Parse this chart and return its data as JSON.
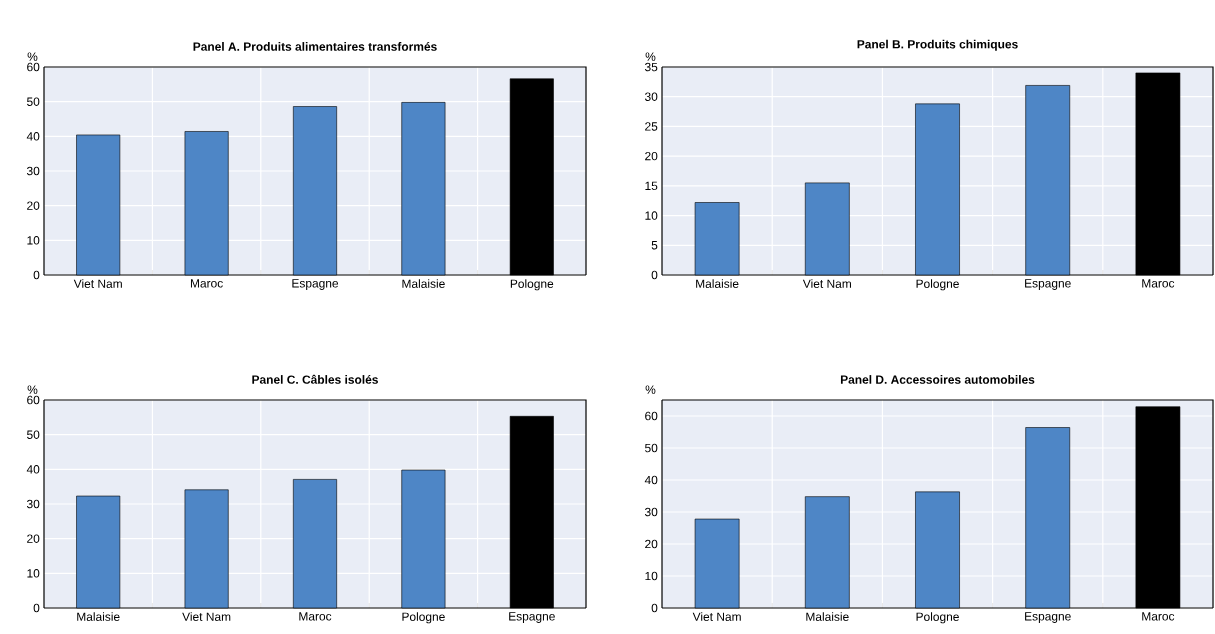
{
  "chart_data": [
    {
      "type": "bar",
      "title": "Panel A. Produits alimentaires transformés",
      "ylabel": "%",
      "categories": [
        "Viet Nam",
        "Maroc",
        "Espagne",
        "Malaisie",
        "Pologne"
      ],
      "values": [
        40.4,
        41.4,
        48.6,
        49.8,
        56.6
      ],
      "colors": [
        "#4e86c6",
        "#4e86c6",
        "#4e86c6",
        "#4e86c6",
        "#000000"
      ],
      "ylim": [
        0,
        60
      ],
      "yticks": [
        0,
        10,
        20,
        30,
        40,
        50,
        60
      ],
      "grid": true
    },
    {
      "type": "bar",
      "title": "Panel B. Produits chimiques",
      "ylabel": "%",
      "categories": [
        "Malaisie",
        "Viet Nam",
        "Pologne",
        "Espagne",
        "Maroc"
      ],
      "values": [
        12.2,
        15.5,
        28.8,
        31.9,
        34.0
      ],
      "colors": [
        "#4e86c6",
        "#4e86c6",
        "#4e86c6",
        "#4e86c6",
        "#000000"
      ],
      "ylim": [
        0,
        35
      ],
      "yticks": [
        0,
        5,
        10,
        15,
        20,
        25,
        30,
        35
      ],
      "grid": true
    },
    {
      "type": "bar",
      "title": "Panel C. Câbles isolés",
      "ylabel": "%",
      "categories": [
        "Malaisie",
        "Viet Nam",
        "Maroc",
        "Pologne",
        "Espagne"
      ],
      "values": [
        32.3,
        34.1,
        37.1,
        39.8,
        55.3
      ],
      "colors": [
        "#4e86c6",
        "#4e86c6",
        "#4e86c6",
        "#4e86c6",
        "#000000"
      ],
      "ylim": [
        0,
        60
      ],
      "yticks": [
        0,
        10,
        20,
        30,
        40,
        50,
        60
      ],
      "grid": true
    },
    {
      "type": "bar",
      "title": "Panel D. Accessoires automobiles",
      "ylabel": "%",
      "categories": [
        "Viet Nam",
        "Malaisie",
        "Pologne",
        "Espagne",
        "Maroc"
      ],
      "values": [
        27.8,
        34.8,
        36.3,
        56.4,
        62.9
      ],
      "colors": [
        "#4e86c6",
        "#4e86c6",
        "#4e86c6",
        "#4e86c6",
        "#000000"
      ],
      "ylim": [
        0,
        65
      ],
      "yticks": [
        0,
        10,
        20,
        30,
        40,
        50,
        60
      ],
      "grid": true
    }
  ]
}
